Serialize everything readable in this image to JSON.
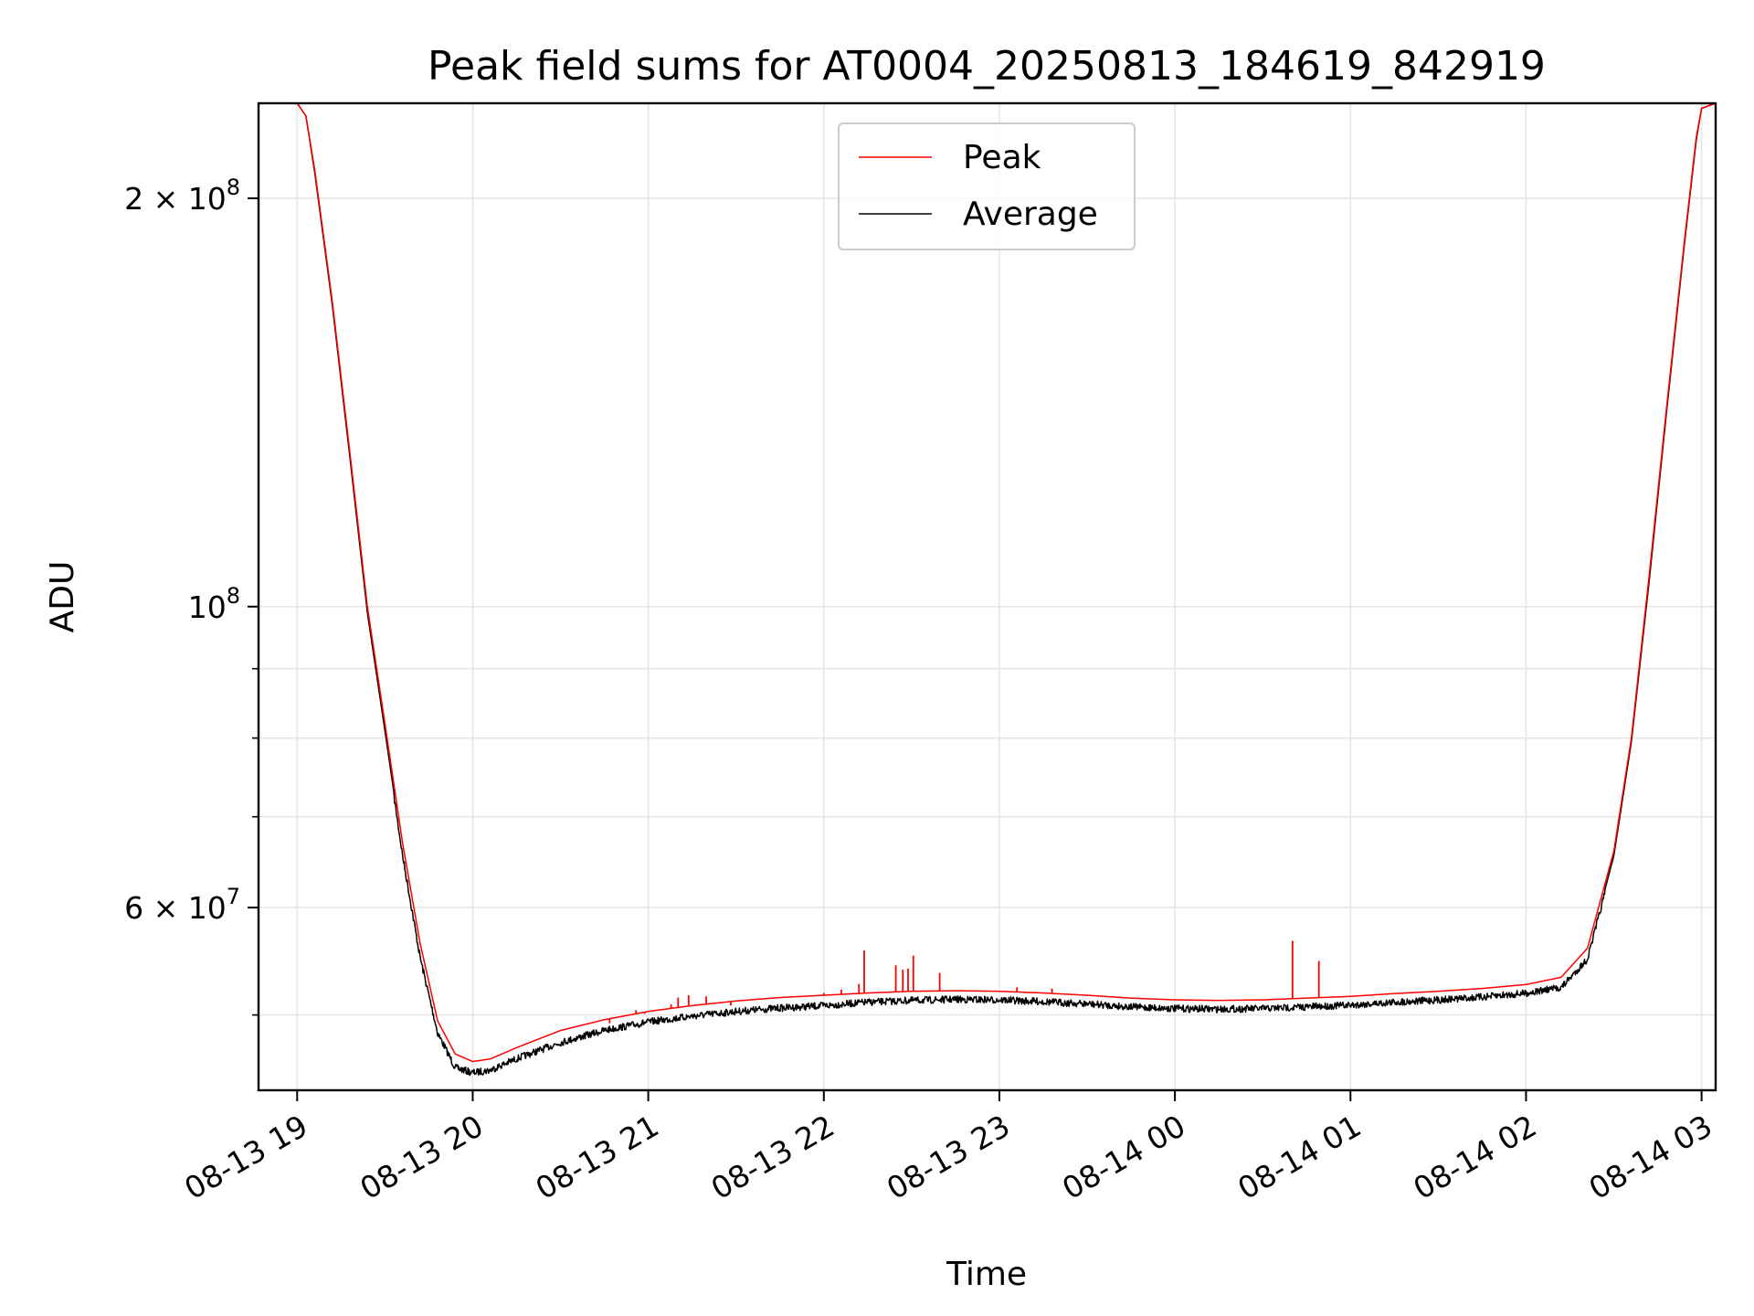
{
  "chart_data": {
    "type": "line",
    "title": "Peak field sums for AT0004_20250813_184619_842919",
    "xlabel": "Time",
    "ylabel": "ADU",
    "yscale": "log",
    "ylim": [
      44000000,
      235000000
    ],
    "x_ticks": [
      "08-13 19",
      "08-13 20",
      "08-13 21",
      "08-13 22",
      "08-13 23",
      "08-14 00",
      "08-14 01",
      "08-14 02",
      "08-14 03"
    ],
    "y_ticks": [
      {
        "value": 60000000,
        "mantissa": "6 × 10",
        "exponent": "7"
      },
      {
        "value": 100000000,
        "mantissa": "10",
        "exponent": "8"
      },
      {
        "value": 200000000,
        "mantissa": "2 × 10",
        "exponent": "8"
      }
    ],
    "y_minor_ticks": [
      50000000,
      70000000,
      80000000,
      90000000
    ],
    "grid": true,
    "legend": {
      "position": "upper center"
    },
    "x_units": "hours since 08-13 19:00",
    "xlim": [
      -0.22,
      8.08
    ],
    "series": [
      {
        "name": "Peak",
        "color": "#ff0000",
        "points": [
          [
            0.0,
            235000000
          ],
          [
            0.05,
            230000000
          ],
          [
            0.1,
            210000000
          ],
          [
            0.2,
            168000000
          ],
          [
            0.3,
            130000000
          ],
          [
            0.4,
            100000000
          ],
          [
            0.5,
            82000000
          ],
          [
            0.6,
            67000000
          ],
          [
            0.7,
            56500000
          ],
          [
            0.8,
            49500000
          ],
          [
            0.9,
            46800000
          ],
          [
            1.0,
            46200000
          ],
          [
            1.1,
            46400000
          ],
          [
            1.25,
            47300000
          ],
          [
            1.5,
            48700000
          ],
          [
            1.75,
            49600000
          ],
          [
            2.0,
            50300000
          ],
          [
            2.25,
            50800000
          ],
          [
            2.5,
            51200000
          ],
          [
            2.75,
            51500000
          ],
          [
            3.0,
            51700000
          ],
          [
            3.25,
            51900000
          ],
          [
            3.5,
            52050000
          ],
          [
            3.75,
            52100000
          ],
          [
            4.0,
            52050000
          ],
          [
            4.25,
            51900000
          ],
          [
            4.5,
            51700000
          ],
          [
            4.75,
            51450000
          ],
          [
            5.0,
            51300000
          ],
          [
            5.25,
            51250000
          ],
          [
            5.5,
            51300000
          ],
          [
            5.75,
            51450000
          ],
          [
            6.0,
            51600000
          ],
          [
            6.25,
            51850000
          ],
          [
            6.5,
            52050000
          ],
          [
            6.75,
            52300000
          ],
          [
            7.0,
            52650000
          ],
          [
            7.2,
            53300000
          ],
          [
            7.35,
            56000000
          ],
          [
            7.5,
            66000000
          ],
          [
            7.6,
            80000000
          ],
          [
            7.7,
            105000000
          ],
          [
            7.8,
            140000000
          ],
          [
            7.9,
            185000000
          ],
          [
            7.97,
            222000000
          ],
          [
            8.0,
            233000000
          ],
          [
            8.08,
            235000000
          ]
        ],
        "spikes": [
          [
            1.78,
            49300000
          ],
          [
            1.93,
            50400000
          ],
          [
            1.98,
            50100000
          ],
          [
            2.08,
            50400000
          ],
          [
            2.13,
            50900000
          ],
          [
            2.17,
            51500000
          ],
          [
            2.23,
            51700000
          ],
          [
            2.33,
            51600000
          ],
          [
            2.47,
            50800000
          ],
          [
            3.0,
            51900000
          ],
          [
            3.1,
            52200000
          ],
          [
            3.2,
            52700000
          ],
          [
            3.23,
            55800000
          ],
          [
            3.41,
            54400000
          ],
          [
            3.45,
            54000000
          ],
          [
            3.48,
            54100000
          ],
          [
            3.51,
            55300000
          ],
          [
            3.66,
            53700000
          ],
          [
            4.1,
            52400000
          ],
          [
            4.3,
            52300000
          ],
          [
            5.67,
            56700000
          ],
          [
            5.82,
            54800000
          ]
        ]
      },
      {
        "name": "Average",
        "color": "#000000",
        "points": [
          [
            0.0,
            235000000
          ],
          [
            0.05,
            230000000
          ],
          [
            0.1,
            209000000
          ],
          [
            0.2,
            167000000
          ],
          [
            0.3,
            129000000
          ],
          [
            0.4,
            99000000
          ],
          [
            0.5,
            81000000
          ],
          [
            0.6,
            66000000
          ],
          [
            0.7,
            55500000
          ],
          [
            0.8,
            48800000
          ],
          [
            0.9,
            46000000
          ],
          [
            1.0,
            45600000
          ],
          [
            1.1,
            45800000
          ],
          [
            1.25,
            46700000
          ],
          [
            1.5,
            48000000
          ],
          [
            1.75,
            49000000
          ],
          [
            2.0,
            49700000
          ],
          [
            2.25,
            50200000
          ],
          [
            2.5,
            50600000
          ],
          [
            2.75,
            50900000
          ],
          [
            3.0,
            51100000
          ],
          [
            3.25,
            51400000
          ],
          [
            3.5,
            51550000
          ],
          [
            3.75,
            51650000
          ],
          [
            4.0,
            51600000
          ],
          [
            4.25,
            51450000
          ],
          [
            4.5,
            51250000
          ],
          [
            4.75,
            51000000
          ],
          [
            5.0,
            50850000
          ],
          [
            5.25,
            50800000
          ],
          [
            5.5,
            50850000
          ],
          [
            5.75,
            51000000
          ],
          [
            6.0,
            51150000
          ],
          [
            6.25,
            51400000
          ],
          [
            6.5,
            51600000
          ],
          [
            6.75,
            51850000
          ],
          [
            7.0,
            52200000
          ],
          [
            7.2,
            52700000
          ],
          [
            7.35,
            55300000
          ],
          [
            7.5,
            65500000
          ],
          [
            7.6,
            79500000
          ],
          [
            7.7,
            104000000
          ],
          [
            7.8,
            139000000
          ],
          [
            7.9,
            184000000
          ],
          [
            7.97,
            221000000
          ],
          [
            8.0,
            233000000
          ],
          [
            8.08,
            235000000
          ]
        ],
        "noise_range": [
          0.55,
          7.45
        ],
        "noise_amplitude": 0.012
      }
    ]
  }
}
